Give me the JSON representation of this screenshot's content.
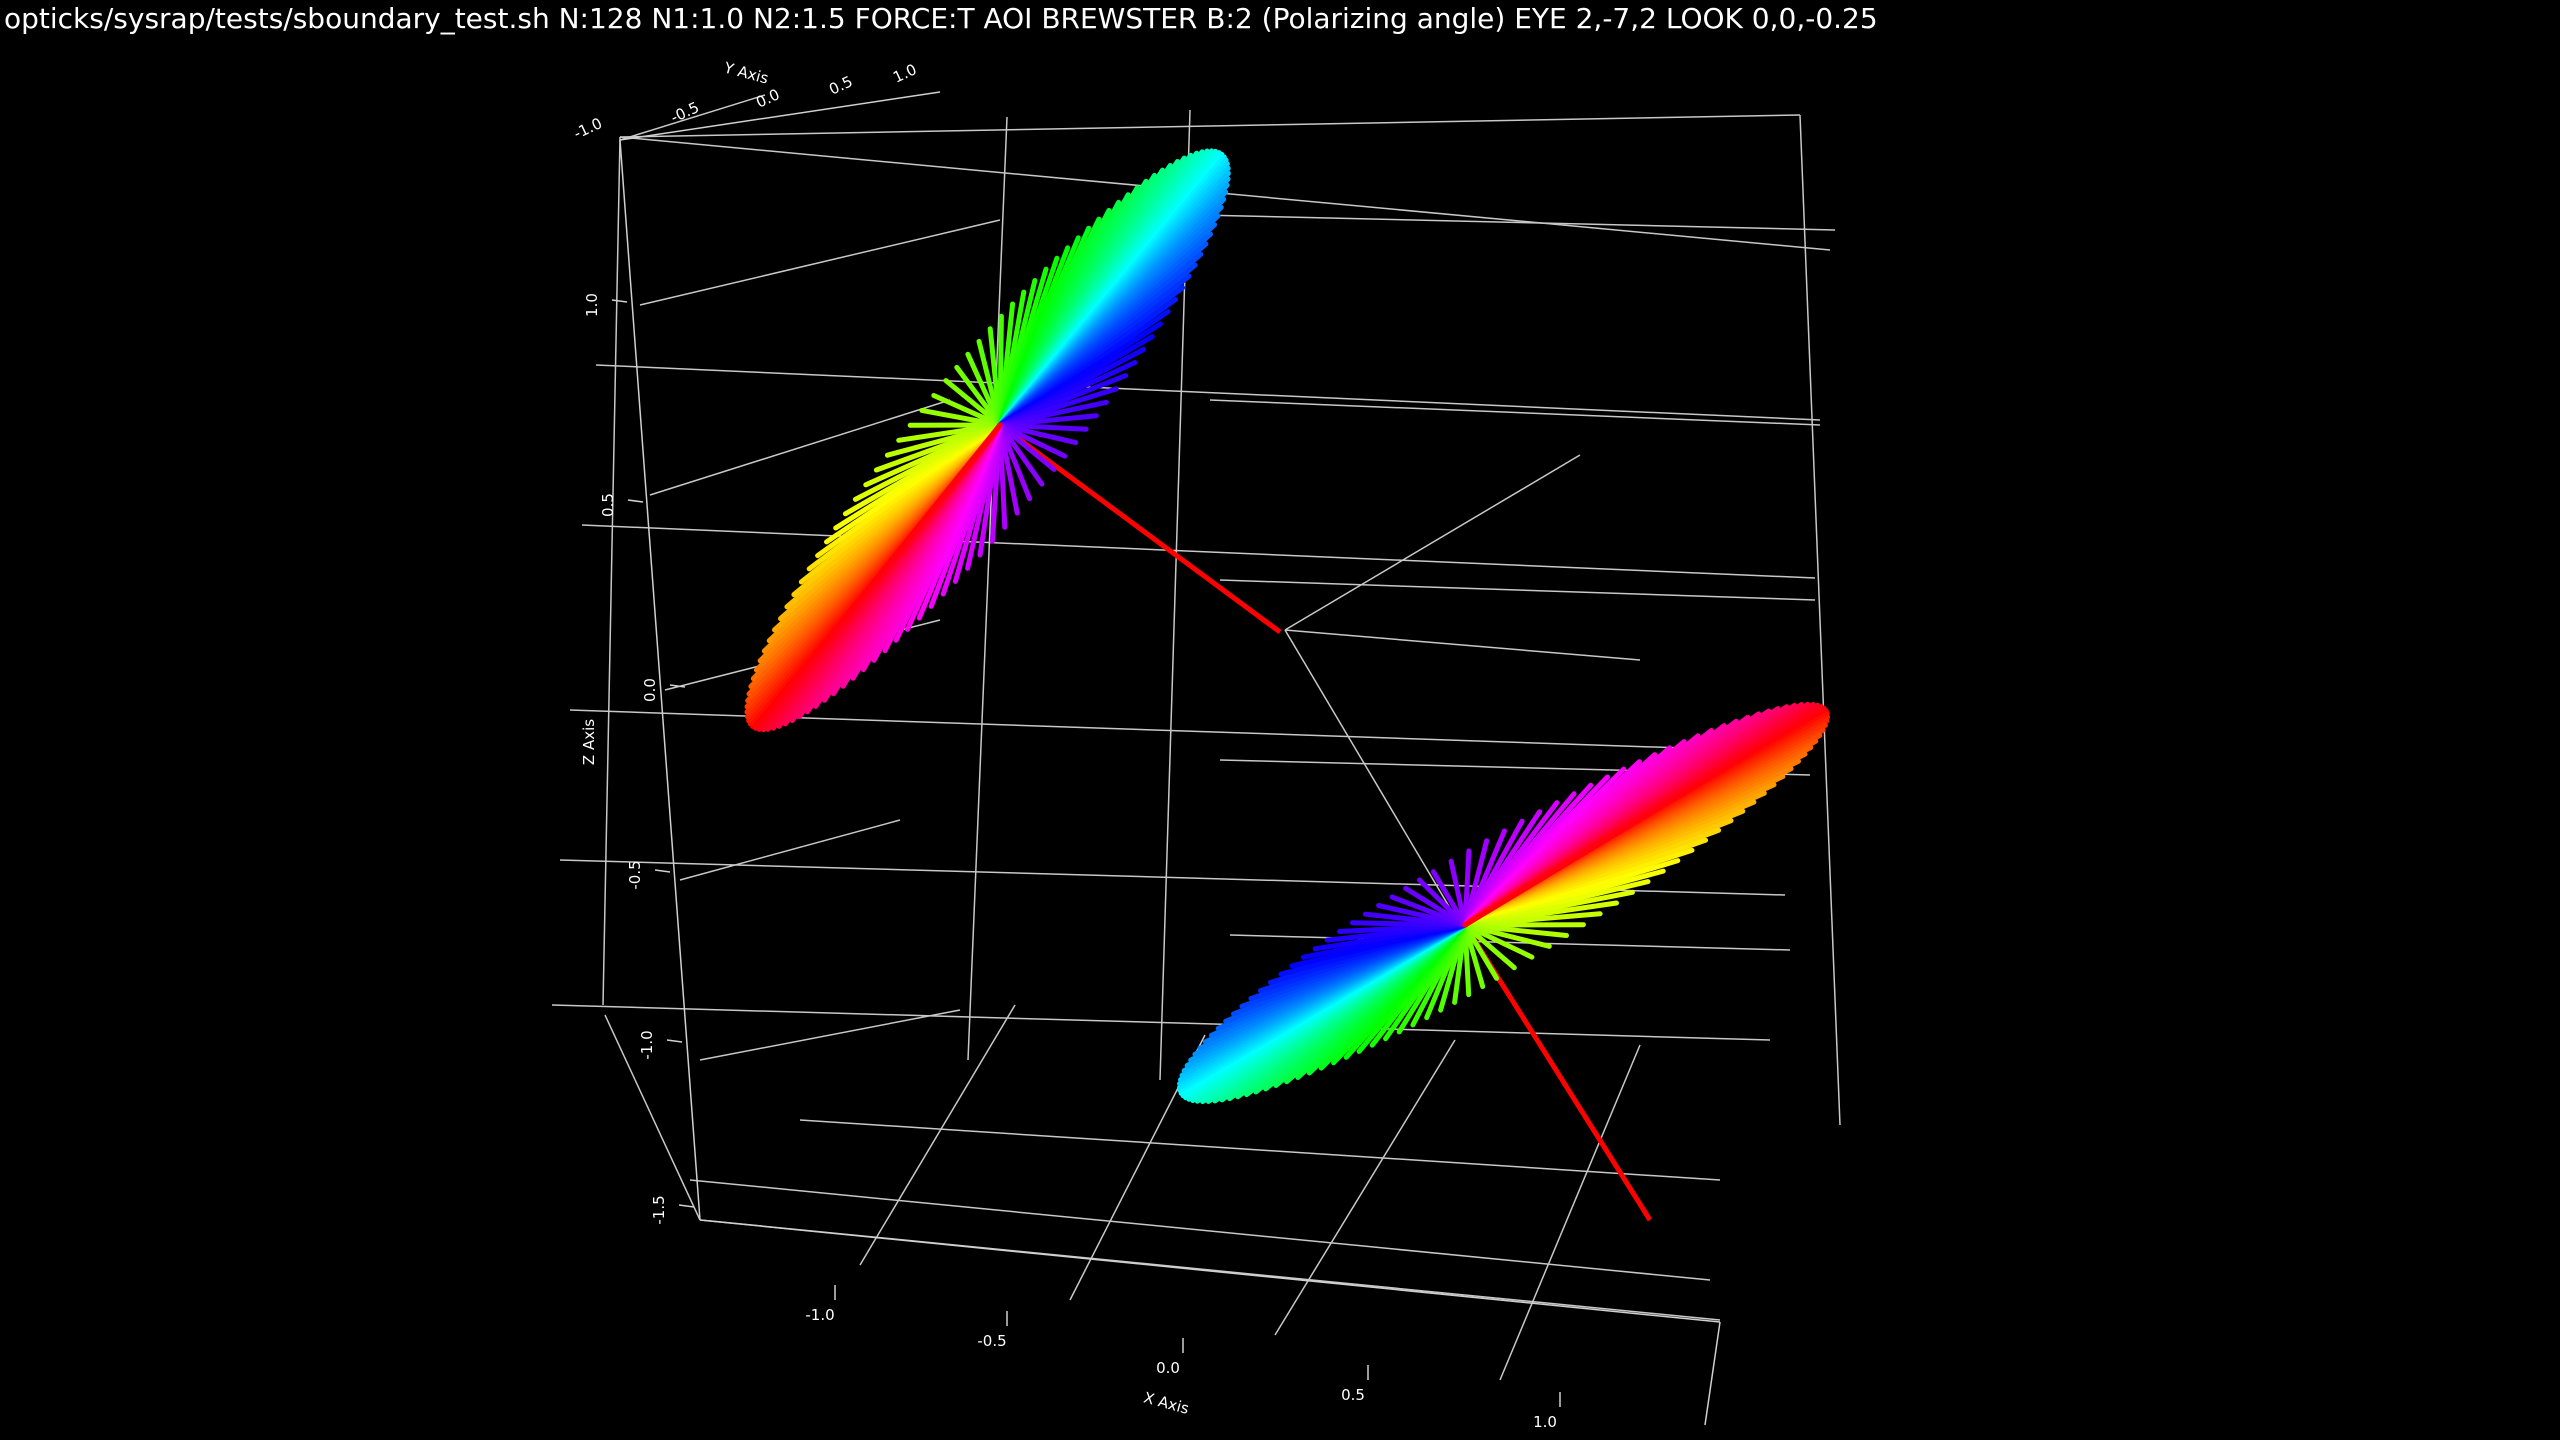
{
  "title": "opticks/sysrap/tests/sboundary_test.sh N:128 N1:1.0 N2:1.5 FORCE:T AOI BREWSTER B:2  (Polarizing angle) EYE 2,-7,2 LOOK 0,0,-0.25",
  "chart_data": {
    "type": "3d-vector-fans",
    "title": "opticks/sysrap/tests/sboundary_test.sh N:128 N1:1.0 N2:1.5 FORCE:T AOI BREWSTER B:2  (Polarizing angle) EYE 2,-7,2 LOOK 0,0,-0.25",
    "axes": {
      "x": {
        "label": "X Axis",
        "ticks": [
          "-1.0",
          "-0.5",
          "0.0",
          "0.5",
          "1.0"
        ]
      },
      "y": {
        "label": "Y Axis",
        "ticks": [
          "-1.0",
          "-0.5",
          "0.0",
          "0.5",
          "1.0"
        ]
      },
      "z": {
        "label": "Z Axis",
        "ticks": [
          "1.0",
          "0.5",
          "0.0",
          "-0.5",
          "-1.0",
          "-1.5"
        ]
      }
    },
    "n_vectors": 128,
    "colormap": "hsv",
    "fans": [
      {
        "name": "",
        "description": "incident-side polarization fan"
      },
      {
        "name": "",
        "description": "transmitted-side polarization fan"
      }
    ],
    "rays": [
      {
        "color": "#ff0000"
      },
      {
        "color": "#ff0000"
      }
    ]
  }
}
